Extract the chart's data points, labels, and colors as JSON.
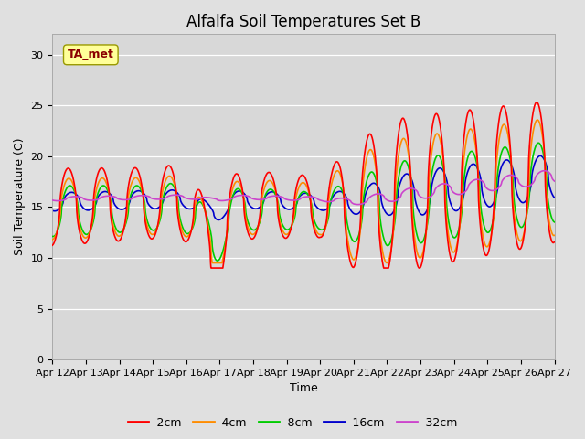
{
  "title": "Alfalfa Soil Temperatures Set B",
  "xlabel": "Time",
  "ylabel": "Soil Temperature (C)",
  "ylim": [
    0,
    32
  ],
  "yticks": [
    0,
    5,
    10,
    15,
    20,
    25,
    30
  ],
  "bg_outer": "#e0e0e0",
  "bg_plot": "#d8d8d8",
  "legend_bg": "#ffffff",
  "annotation_label": "TA_met",
  "annotation_color": "#8b0000",
  "annotation_bg": "#ffff99",
  "annotation_edge": "#999900",
  "lines": {
    "-2cm": {
      "color": "#ff0000",
      "lw": 1.2
    },
    "-4cm": {
      "color": "#ff8c00",
      "lw": 1.2
    },
    "-8cm": {
      "color": "#00cc00",
      "lw": 1.2
    },
    "-16cm": {
      "color": "#0000cc",
      "lw": 1.2
    },
    "-32cm": {
      "color": "#cc44cc",
      "lw": 1.2
    }
  },
  "xticklabels": [
    "Apr 12",
    "Apr 13",
    "Apr 14",
    "Apr 15",
    "Apr 16",
    "Apr 17",
    "Apr 18",
    "Apr 19",
    "Apr 20",
    "Apr 21",
    "Apr 22",
    "Apr 23",
    "Apr 24",
    "Apr 25",
    "Apr 26",
    "Apr 27"
  ],
  "title_fontsize": 12,
  "axis_fontsize": 9,
  "tick_fontsize": 8
}
